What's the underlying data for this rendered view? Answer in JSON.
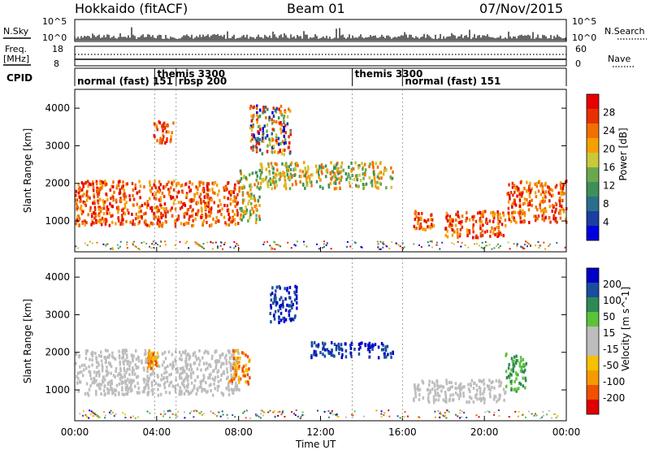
{
  "header": {
    "site": "Hokkaido (fitACF)",
    "beam": "Beam 01",
    "date": "07/Nov/2015"
  },
  "noise_panel": {
    "left_label": "N.Sky",
    "right_label": "N.Search",
    "left_ticks": [
      "10^5",
      "10^0"
    ],
    "right_ticks": [
      "10^5",
      "10^0"
    ]
  },
  "freq_panel": {
    "left_label_1": "Freq.",
    "left_label_2": "[MHz]",
    "left_ticks": [
      "18",
      "8"
    ],
    "right_label": "Nave",
    "right_ticks": [
      "60",
      "0"
    ]
  },
  "cpid": {
    "label": "CPID",
    "segments": [
      {
        "name": "normal (fast)",
        "code": "151",
        "start_h": 0.0,
        "end_h": 3.9,
        "row": 1
      },
      {
        "name": "themis",
        "code": "3300",
        "start_h": 3.9,
        "end_h": 4.95,
        "row": 0
      },
      {
        "name": "rbsp",
        "code": "200",
        "start_h": 4.95,
        "end_h": 13.55,
        "row": 1
      },
      {
        "name": "themis",
        "code": "3300",
        "start_h": 13.55,
        "end_h": 16.0,
        "row": 0
      },
      {
        "name": "normal (fast)",
        "code": "151",
        "start_h": 16.0,
        "end_h": 24.0,
        "row": 1
      }
    ]
  },
  "colors": {
    "power": [
      "#0000dd",
      "#1a3fa0",
      "#2a6e8c",
      "#3f8f5a",
      "#6aa84f",
      "#c9c93a",
      "#f5a000",
      "#f07000",
      "#e83000",
      "#e80000"
    ],
    "velocity": [
      "#e00000",
      "#f05000",
      "#f59a00",
      "#f5c000",
      "#bdbdbd",
      "#bdbdbd",
      "#5cc23a",
      "#2e8a55",
      "#1b4d9e",
      "#0000c8"
    ]
  },
  "chart_data": [
    {
      "type": "heatmap",
      "title": "Power",
      "xlabel": "",
      "ylabel": "Slant Range [km]",
      "x_range_hours": [
        0,
        24
      ],
      "ylim": [
        180,
        4500
      ],
      "yticks": [
        "1000",
        "2000",
        "3000",
        "4000"
      ],
      "colorbar_label": "Power [dB]",
      "colorbar_ticks": [
        "4",
        "8",
        "12",
        "16",
        "20",
        "24",
        "28"
      ],
      "regions": [
        {
          "x0": 0.0,
          "x1": 8.0,
          "y0": 900,
          "y1": 2100,
          "level": "high"
        },
        {
          "x0": 3.8,
          "x1": 4.8,
          "y0": 3100,
          "y1": 3700,
          "level": "high"
        },
        {
          "x0": 8.0,
          "x1": 9.0,
          "y0": 1000,
          "y1": 2400,
          "level": "medium"
        },
        {
          "x0": 8.5,
          "x1": 10.5,
          "y0": 2800,
          "y1": 4100,
          "level": "mixed"
        },
        {
          "x0": 9.0,
          "x1": 15.5,
          "y0": 1900,
          "y1": 2600,
          "level": "medium"
        },
        {
          "x0": 16.5,
          "x1": 17.5,
          "y0": 800,
          "y1": 1300,
          "level": "high"
        },
        {
          "x0": 18.0,
          "x1": 21.0,
          "y0": 600,
          "y1": 1300,
          "level": "high"
        },
        {
          "x0": 21.0,
          "x1": 24.0,
          "y0": 1000,
          "y1": 2100,
          "level": "high"
        }
      ]
    },
    {
      "type": "heatmap",
      "title": "Velocity",
      "xlabel": "Time UT",
      "ylabel": "Slant Range [km]",
      "x_range_hours": [
        0,
        24
      ],
      "xticks": [
        "00:00",
        "04:00",
        "08:00",
        "12:00",
        "16:00",
        "20:00",
        "00:00"
      ],
      "ylim": [
        180,
        4500
      ],
      "yticks": [
        "1000",
        "2000",
        "3000",
        "4000"
      ],
      "colorbar_label": "Velocity [m s^-1]",
      "colorbar_ticks": [
        "200",
        "100",
        "50",
        "15",
        "-15",
        "-50",
        "-100",
        "-200"
      ],
      "regions": [
        {
          "x0": 0.0,
          "x1": 8.0,
          "y0": 900,
          "y1": 2100,
          "level": "near-zero"
        },
        {
          "x0": 3.5,
          "x1": 4.0,
          "y0": 1600,
          "y1": 2100,
          "level": "negative"
        },
        {
          "x0": 7.5,
          "x1": 8.5,
          "y0": 1200,
          "y1": 2100,
          "level": "negative"
        },
        {
          "x0": 9.5,
          "x1": 10.8,
          "y0": 2800,
          "y1": 3800,
          "level": "positive"
        },
        {
          "x0": 11.5,
          "x1": 15.5,
          "y0": 1900,
          "y1": 2300,
          "level": "positive"
        },
        {
          "x0": 16.5,
          "x1": 21.0,
          "y0": 700,
          "y1": 1300,
          "level": "near-zero"
        },
        {
          "x0": 21.0,
          "x1": 22.0,
          "y0": 1000,
          "y1": 2000,
          "level": "positive-low"
        }
      ]
    }
  ]
}
